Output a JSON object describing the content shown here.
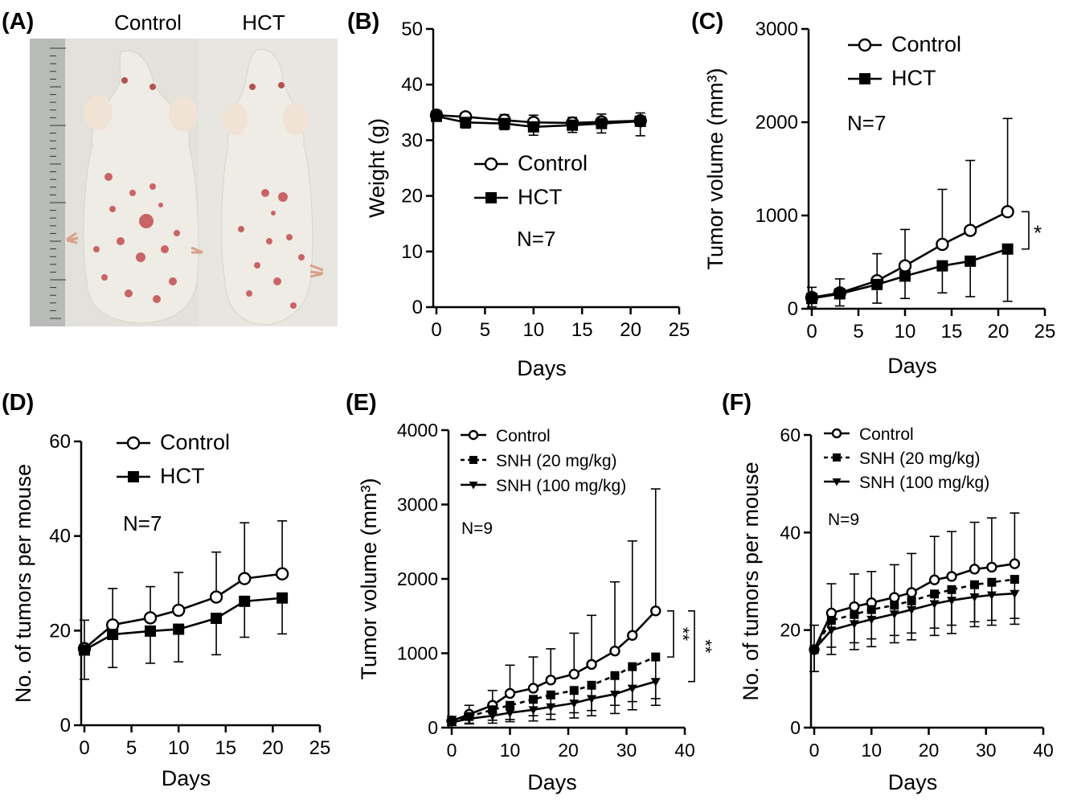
{
  "panel_labels": [
    "(A)",
    "(B)",
    "(C)",
    "(D)",
    "(E)",
    "(F)"
  ],
  "photo": {
    "labels": [
      "Control",
      "HCT"
    ]
  },
  "chart_data": [
    {
      "id": "B",
      "type": "line",
      "title": "",
      "xlabel": "Days",
      "ylabel": "Weight (g)",
      "xlim": [
        0,
        25
      ],
      "ylim": [
        0,
        50
      ],
      "xticks": [
        0,
        5,
        10,
        15,
        20,
        25
      ],
      "yticks": [
        0,
        10,
        20,
        30,
        40,
        50
      ],
      "annotation": "N=7",
      "series": [
        {
          "name": "Control",
          "marker": "open-circle",
          "style": "solid",
          "x": [
            0,
            3,
            7,
            10,
            14,
            17,
            21
          ],
          "values": [
            34.5,
            34.2,
            33.6,
            33.2,
            33.1,
            33.3,
            33.5
          ],
          "err": [
            0.8,
            0.7,
            1.0,
            1.3,
            1.0,
            1.4,
            1.4
          ]
        },
        {
          "name": "HCT",
          "marker": "filled-square",
          "style": "solid",
          "x": [
            0,
            3,
            7,
            10,
            14,
            17,
            21
          ],
          "values": [
            34.3,
            33.2,
            33.0,
            32.4,
            32.7,
            33.0,
            33.4
          ],
          "err": [
            0.9,
            1.0,
            1.1,
            1.5,
            1.3,
            1.7,
            2.6
          ]
        }
      ]
    },
    {
      "id": "C",
      "type": "line",
      "title": "",
      "xlabel": "Days",
      "ylabel": "Tumor volume (mm³)",
      "xlim": [
        0,
        25
      ],
      "ylim": [
        0,
        3000
      ],
      "xticks": [
        0,
        5,
        10,
        15,
        20,
        25
      ],
      "yticks": [
        0,
        1000,
        2000,
        3000
      ],
      "annotation": "N=7",
      "significance": "*",
      "series": [
        {
          "name": "Control",
          "marker": "open-circle",
          "style": "solid",
          "x": [
            0,
            3,
            7,
            10,
            14,
            17,
            21
          ],
          "values": [
            120,
            170,
            300,
            460,
            690,
            840,
            1040
          ],
          "err": [
            110,
            150,
            290,
            390,
            590,
            750,
            1000
          ]
        },
        {
          "name": "HCT",
          "marker": "filled-square",
          "style": "solid",
          "x": [
            0,
            3,
            7,
            10,
            14,
            17,
            21
          ],
          "values": [
            110,
            160,
            260,
            350,
            460,
            510,
            640
          ],
          "err": [
            90,
            130,
            200,
            240,
            290,
            380,
            560
          ]
        }
      ]
    },
    {
      "id": "D",
      "type": "line",
      "title": "",
      "xlabel": "Days",
      "ylabel": "No. of tumors per mouse",
      "xlim": [
        0,
        25
      ],
      "ylim": [
        0,
        60
      ],
      "xticks": [
        0,
        5,
        10,
        15,
        20,
        25
      ],
      "yticks": [
        0,
        20,
        40,
        60
      ],
      "annotation": "N=7",
      "series": [
        {
          "name": "Control",
          "marker": "open-circle",
          "style": "solid",
          "x": [
            0,
            3,
            7,
            10,
            14,
            17,
            21
          ],
          "values": [
            16.2,
            21.2,
            22.7,
            24.3,
            27.1,
            31.0,
            32.0
          ],
          "err": [
            6.0,
            7.7,
            6.6,
            8.0,
            9.5,
            11.8,
            11.2
          ]
        },
        {
          "name": "HCT",
          "marker": "filled-square",
          "style": "solid",
          "x": [
            0,
            3,
            7,
            10,
            14,
            17,
            21
          ],
          "values": [
            15.9,
            19.2,
            19.9,
            20.3,
            22.6,
            26.2,
            26.9
          ],
          "err": [
            6.2,
            7.0,
            6.8,
            6.9,
            7.7,
            7.6,
            7.6
          ]
        }
      ]
    },
    {
      "id": "E",
      "type": "line",
      "title": "",
      "xlabel": "Days",
      "ylabel": "Tumor volume (mm³)",
      "xlim": [
        0,
        40
      ],
      "ylim": [
        0,
        4000
      ],
      "xticks": [
        0,
        10,
        20,
        30,
        40
      ],
      "yticks": [
        0,
        1000,
        2000,
        3000,
        4000
      ],
      "annotation": "N=9",
      "significance": [
        "**",
        "**"
      ],
      "series": [
        {
          "name": "Control",
          "marker": "open-circle",
          "style": "solid",
          "x": [
            0,
            3,
            7,
            10,
            14,
            17,
            21,
            24,
            28,
            31,
            35
          ],
          "values": [
            90,
            180,
            300,
            460,
            530,
            640,
            720,
            850,
            1030,
            1240,
            1570
          ],
          "err": [
            60,
            120,
            200,
            380,
            420,
            420,
            550,
            660,
            930,
            1270,
            1640
          ]
        },
        {
          "name": "SNH (20 mg/kg)",
          "marker": "filled-square",
          "style": "dashed",
          "x": [
            0,
            3,
            7,
            10,
            14,
            17,
            21,
            24,
            28,
            31,
            35
          ],
          "values": [
            80,
            150,
            240,
            300,
            380,
            440,
            500,
            570,
            700,
            820,
            950
          ],
          "err": [
            50,
            90,
            140,
            190,
            220,
            260,
            300,
            340,
            400,
            470,
            560
          ]
        },
        {
          "name": "SNH (100 mg/kg)",
          "marker": "filled-triangle-down",
          "style": "solid",
          "x": [
            0,
            3,
            7,
            10,
            14,
            17,
            21,
            24,
            28,
            31,
            35
          ],
          "values": [
            70,
            120,
            160,
            200,
            240,
            280,
            330,
            390,
            450,
            530,
            620
          ],
          "err": [
            40,
            70,
            100,
            120,
            150,
            170,
            200,
            230,
            260,
            290,
            320
          ]
        }
      ]
    },
    {
      "id": "F",
      "type": "line",
      "title": "",
      "xlabel": "Days",
      "ylabel": "No. of tumors per mouse",
      "xlim": [
        0,
        40
      ],
      "ylim": [
        0,
        60
      ],
      "xticks": [
        0,
        10,
        20,
        30,
        40
      ],
      "yticks": [
        0,
        20,
        40,
        60
      ],
      "annotation": "N=9",
      "series": [
        {
          "name": "Control",
          "marker": "open-circle",
          "style": "solid",
          "x": [
            0,
            3,
            7,
            10,
            14,
            17,
            21,
            24,
            28,
            31,
            35
          ],
          "values": [
            16,
            23.5,
            24.8,
            25.6,
            26.7,
            27.7,
            30.3,
            31.0,
            32.5,
            32.9,
            33.6
          ],
          "err": [
            5.0,
            6.0,
            6.7,
            6.4,
            6.7,
            8.0,
            8.9,
            9.2,
            9.6,
            10.1,
            10.4
          ]
        },
        {
          "name": "SNH (20 mg/kg)",
          "marker": "filled-square",
          "style": "dashed",
          "x": [
            0,
            3,
            7,
            10,
            14,
            17,
            21,
            24,
            28,
            31,
            35
          ],
          "values": [
            16,
            22.0,
            23.2,
            24.2,
            25.1,
            26.0,
            27.4,
            28.3,
            29.3,
            29.8,
            30.4
          ],
          "err": [
            4.5,
            5.5,
            5.8,
            6.0,
            6.2,
            6.6,
            7.0,
            7.3,
            7.6,
            7.8,
            8.0
          ]
        },
        {
          "name": "SNH (100 mg/kg)",
          "marker": "filled-triangle-down",
          "style": "solid",
          "x": [
            0,
            3,
            7,
            10,
            14,
            17,
            21,
            24,
            28,
            31,
            35
          ],
          "values": [
            16,
            20.0,
            21.3,
            22.2,
            23.3,
            24.2,
            25.4,
            26.1,
            26.8,
            27.2,
            27.5
          ],
          "err": [
            4.5,
            5.0,
            5.3,
            5.6,
            5.9,
            6.2,
            6.5,
            6.8,
            6.1,
            6.2,
            6.3
          ]
        }
      ]
    }
  ]
}
